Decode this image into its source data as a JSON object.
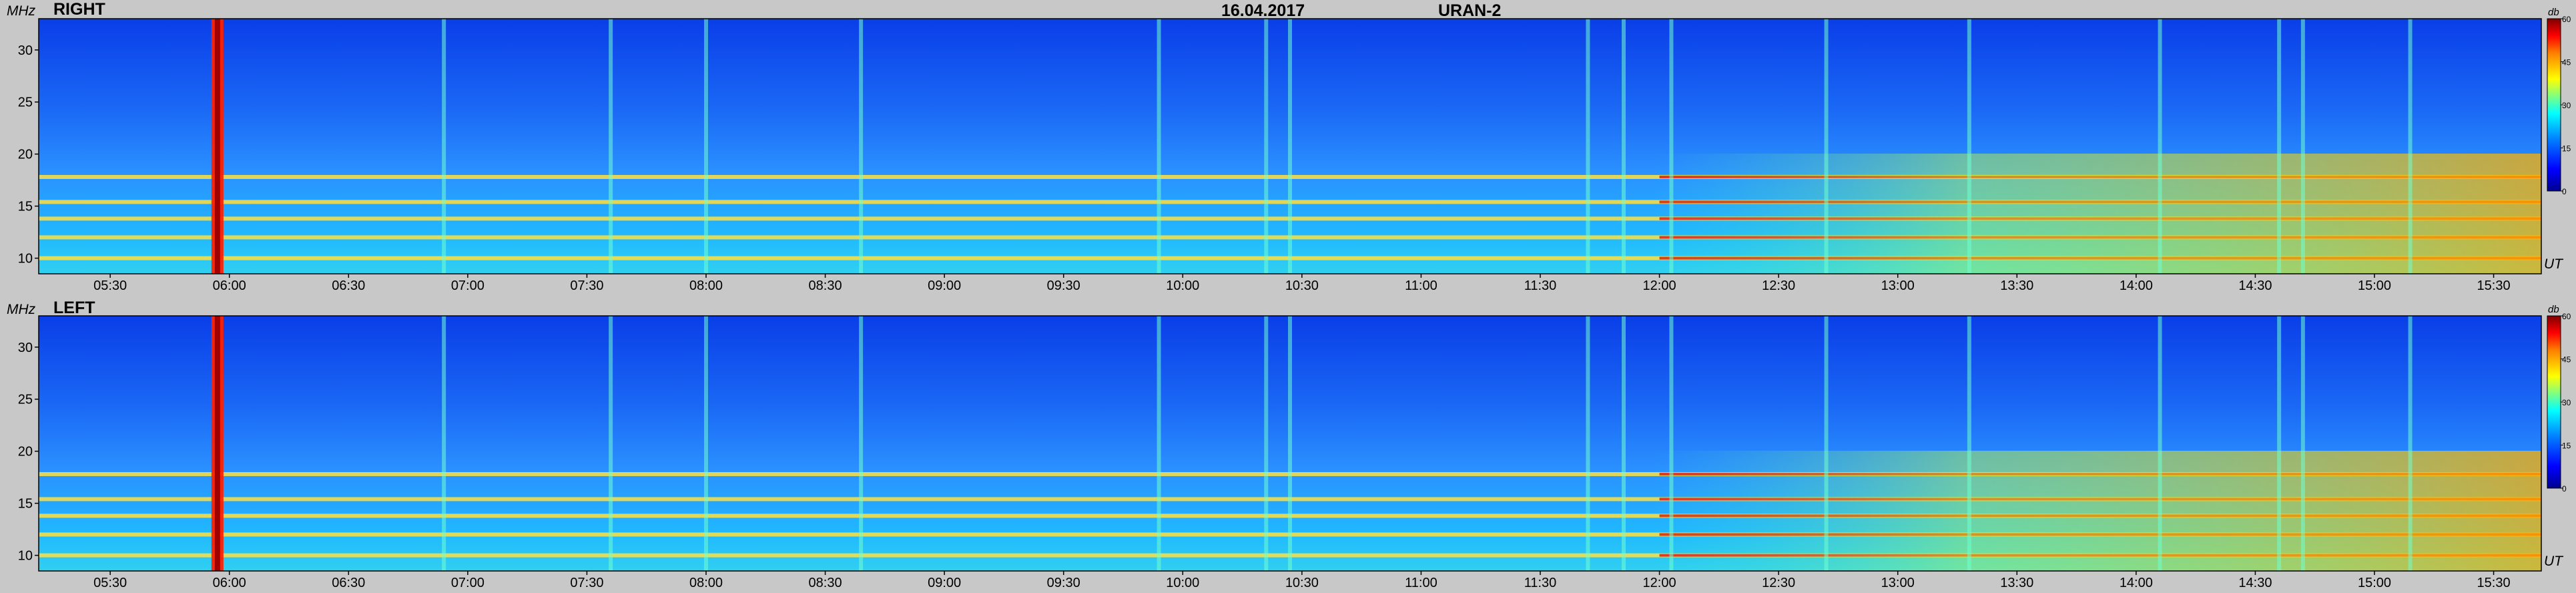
{
  "header": {
    "date": "16.04.2017",
    "instrument": "URAN-2"
  },
  "colors": {
    "background": "#c8c8c8",
    "colormap": [
      "#00008f",
      "#0000ff",
      "#0080ff",
      "#00ffff",
      "#80ff80",
      "#ffff00",
      "#ff8000",
      "#ff0000",
      "#800000"
    ]
  },
  "chart_data": [
    {
      "type": "heatmap",
      "panel_label": "RIGHT",
      "ylabel": "MHz",
      "xlabel": "UT",
      "x_tick_labels": [
        "05:30",
        "06:00",
        "06:30",
        "07:00",
        "07:30",
        "08:00",
        "08:30",
        "09:00",
        "09:30",
        "10:00",
        "10:30",
        "11:00",
        "11:30",
        "12:00",
        "12:30",
        "13:00",
        "13:30",
        "14:00",
        "14:30",
        "15:00",
        "15:30"
      ],
      "x_ticks_hours": [
        5.5,
        6.0,
        6.5,
        7.0,
        7.5,
        8.0,
        8.5,
        9.0,
        9.5,
        10.0,
        10.5,
        11.0,
        11.5,
        12.0,
        12.5,
        13.0,
        13.5,
        14.0,
        14.5,
        15.0,
        15.5
      ],
      "xlim_hours": [
        5.2,
        15.7
      ],
      "y_tick_labels": [
        "10",
        "15",
        "20",
        "25",
        "30"
      ],
      "y_ticks": [
        10,
        15,
        20,
        25,
        30
      ],
      "ylim": [
        8.5,
        33
      ],
      "colorbar": {
        "unit": "db",
        "tick_labels": [
          "60",
          "45",
          "30",
          "15",
          "0"
        ],
        "ticks": [
          60,
          45,
          30,
          15,
          0
        ],
        "range": [
          0,
          60
        ]
      },
      "features": {
        "narrowband_lines_mhz": [
          17.8,
          15.4,
          13.8,
          12.0,
          10.0
        ],
        "burst_times_hours": [
          5.95,
          6.9,
          7.6,
          8.0,
          8.65,
          9.9,
          10.35,
          10.45,
          11.7,
          11.85,
          12.05,
          12.7,
          13.3,
          14.1,
          14.6,
          14.7,
          15.15
        ],
        "strong_burst_time_hours": 5.95,
        "late_broadband_start_hours": 12.0
      }
    },
    {
      "type": "heatmap",
      "panel_label": "LEFT",
      "ylabel": "MHz",
      "xlabel": "UT",
      "x_tick_labels": [
        "05:30",
        "06:00",
        "06:30",
        "07:00",
        "07:30",
        "08:00",
        "08:30",
        "09:00",
        "09:30",
        "10:00",
        "10:30",
        "11:00",
        "11:30",
        "12:00",
        "12:30",
        "13:00",
        "13:30",
        "14:00",
        "14:30",
        "15:00",
        "15:30"
      ],
      "x_ticks_hours": [
        5.5,
        6.0,
        6.5,
        7.0,
        7.5,
        8.0,
        8.5,
        9.0,
        9.5,
        10.0,
        10.5,
        11.0,
        11.5,
        12.0,
        12.5,
        13.0,
        13.5,
        14.0,
        14.5,
        15.0,
        15.5
      ],
      "xlim_hours": [
        5.2,
        15.7
      ],
      "y_tick_labels": [
        "10",
        "15",
        "20",
        "25",
        "30"
      ],
      "y_ticks": [
        10,
        15,
        20,
        25,
        30
      ],
      "ylim": [
        8.5,
        33
      ],
      "colorbar": {
        "unit": "db",
        "tick_labels": [
          "60",
          "45",
          "30",
          "15",
          "0"
        ],
        "ticks": [
          60,
          45,
          30,
          15,
          0
        ],
        "range": [
          0,
          60
        ]
      },
      "features": {
        "narrowband_lines_mhz": [
          17.8,
          15.4,
          13.8,
          12.0,
          10.0
        ],
        "burst_times_hours": [
          5.95,
          6.9,
          7.6,
          8.0,
          8.65,
          9.9,
          10.35,
          10.45,
          11.7,
          11.85,
          12.05,
          12.7,
          13.3,
          14.1,
          14.6,
          14.7,
          15.15
        ],
        "strong_burst_time_hours": 5.95,
        "late_broadband_start_hours": 12.0
      }
    }
  ]
}
